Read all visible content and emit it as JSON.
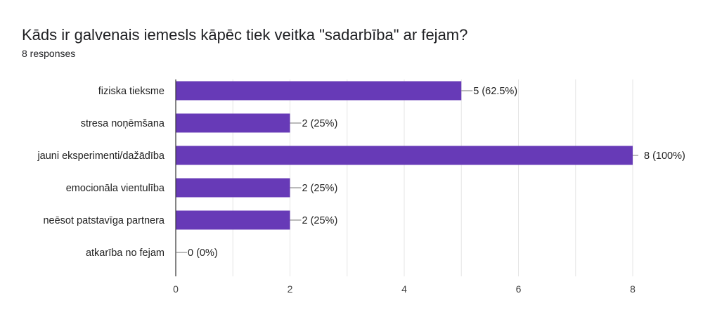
{
  "question": {
    "title": "Kāds ir galvenais iemesls kāpēc tiek veitka \"sadarbība\" ar fejam?",
    "responses_label": "8 responses"
  },
  "chart_data": {
    "type": "bar",
    "orientation": "horizontal",
    "categories": [
      "fiziska tieksme",
      "stresa noņēmšana",
      "jauni eksperimenti/dažādība",
      "emocionāla vientulība",
      "neēsot patstavīga partnera",
      "atkarība no fejam"
    ],
    "values": [
      5,
      2,
      8,
      2,
      2,
      0
    ],
    "value_labels": [
      "5 (62.5%)",
      "2 (25%)",
      "8 (100%)",
      "2 (25%)",
      "2 (25%)",
      "0 (0%)"
    ],
    "xlim": [
      0,
      8
    ],
    "xticks": [
      "0",
      "2",
      "4",
      "6",
      "8"
    ],
    "grid": true,
    "bar_color": "#673ab7"
  }
}
